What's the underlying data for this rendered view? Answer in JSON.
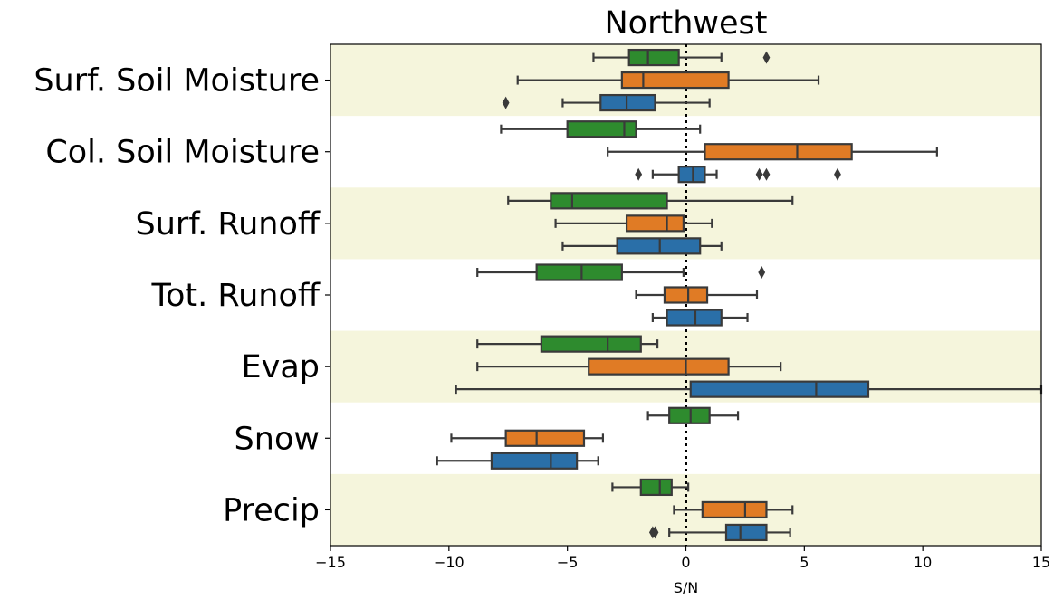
{
  "chart_data": {
    "type": "boxplot",
    "orientation": "horizontal",
    "title": "Northwest",
    "xlabel": "S/N",
    "xlim": [
      -15,
      15
    ],
    "xticks": [
      -15,
      -10,
      -5,
      0,
      5,
      10,
      15
    ],
    "xtick_labels": [
      "−15",
      "−10",
      "−5",
      "0",
      "5",
      "10",
      "15"
    ],
    "reference_line": {
      "x": 0,
      "style": "dotted",
      "color": "#000000"
    },
    "band_color": "#f5f5dc",
    "series_colors": [
      "#2e8b2e",
      "#e07b25",
      "#2a6fa8"
    ],
    "categories": [
      {
        "label": "Surf. Soil Moisture",
        "shaded": true,
        "boxes": [
          {
            "whislo": -3.9,
            "q1": -2.4,
            "med": -1.6,
            "q3": -0.3,
            "whishi": 1.5,
            "fliers": [
              3.4
            ]
          },
          {
            "whislo": -7.1,
            "q1": -2.7,
            "med": -1.8,
            "q3": 1.8,
            "whishi": 5.6,
            "fliers": []
          },
          {
            "whislo": -5.2,
            "q1": -3.6,
            "med": -2.5,
            "q3": -1.3,
            "whishi": 1.0,
            "fliers": [
              -7.6
            ]
          }
        ]
      },
      {
        "label": "Col. Soil Moisture",
        "shaded": false,
        "boxes": [
          {
            "whislo": -7.8,
            "q1": -5.0,
            "med": -2.6,
            "q3": -2.1,
            "whishi": 0.6,
            "fliers": []
          },
          {
            "whislo": -3.3,
            "q1": 0.8,
            "med": 4.7,
            "q3": 7.0,
            "whishi": 10.6,
            "fliers": []
          },
          {
            "whislo": -1.4,
            "q1": -0.3,
            "med": 0.3,
            "q3": 0.8,
            "whishi": 1.3,
            "fliers": [
              -2.0,
              3.1,
              3.4,
              6.4
            ]
          }
        ]
      },
      {
        "label": "Surf. Runoff",
        "shaded": true,
        "boxes": [
          {
            "whislo": -7.5,
            "q1": -5.7,
            "med": -4.8,
            "q3": -0.8,
            "whishi": 4.5,
            "fliers": []
          },
          {
            "whislo": -5.5,
            "q1": -2.5,
            "med": -0.8,
            "q3": -0.1,
            "whishi": 1.1,
            "fliers": []
          },
          {
            "whislo": -5.2,
            "q1": -2.9,
            "med": -1.1,
            "q3": 0.6,
            "whishi": 1.5,
            "fliers": []
          }
        ]
      },
      {
        "label": "Tot. Runoff",
        "shaded": false,
        "boxes": [
          {
            "whislo": -8.8,
            "q1": -6.3,
            "med": -4.4,
            "q3": -2.7,
            "whishi": -0.1,
            "fliers": [
              3.2
            ]
          },
          {
            "whislo": -2.1,
            "q1": -0.9,
            "med": 0.1,
            "q3": 0.9,
            "whishi": 3.0,
            "fliers": []
          },
          {
            "whislo": -1.4,
            "q1": -0.8,
            "med": 0.4,
            "q3": 1.5,
            "whishi": 2.6,
            "fliers": []
          }
        ]
      },
      {
        "label": "Evap",
        "shaded": true,
        "boxes": [
          {
            "whislo": -8.8,
            "q1": -6.1,
            "med": -3.3,
            "q3": -1.9,
            "whishi": -1.2,
            "fliers": []
          },
          {
            "whislo": -8.8,
            "q1": -4.1,
            "med": 0.0,
            "q3": 1.8,
            "whishi": 4.0,
            "fliers": []
          },
          {
            "whislo": -9.7,
            "q1": 0.2,
            "med": 5.5,
            "q3": 7.7,
            "whishi": 15.0,
            "fliers": []
          }
        ]
      },
      {
        "label": "Snow",
        "shaded": false,
        "boxes": [
          {
            "whislo": -1.6,
            "q1": -0.7,
            "med": 0.2,
            "q3": 1.0,
            "whishi": 2.2,
            "fliers": []
          },
          {
            "whislo": -9.9,
            "q1": -7.6,
            "med": -6.3,
            "q3": -4.3,
            "whishi": -3.5,
            "fliers": []
          },
          {
            "whislo": -10.5,
            "q1": -8.2,
            "med": -5.7,
            "q3": -4.6,
            "whishi": -3.7,
            "fliers": []
          }
        ]
      },
      {
        "label": "Precip",
        "shaded": true,
        "boxes": [
          {
            "whislo": -3.1,
            "q1": -1.9,
            "med": -1.1,
            "q3": -0.6,
            "whishi": 0.1,
            "fliers": []
          },
          {
            "whislo": -0.5,
            "q1": 0.7,
            "med": 2.5,
            "q3": 3.4,
            "whishi": 4.5,
            "fliers": []
          },
          {
            "whislo": -0.7,
            "q1": 1.7,
            "med": 2.3,
            "q3": 3.4,
            "whishi": 4.4,
            "fliers": [
              -1.3,
              -1.4
            ]
          }
        ]
      }
    ]
  }
}
